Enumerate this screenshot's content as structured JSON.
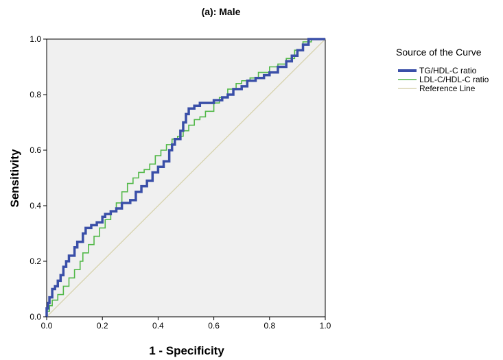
{
  "chart_data": {
    "type": "line",
    "title": "(a): Male",
    "xlabel": "1 - Specificity",
    "ylabel": "Sensitivity",
    "xlim": [
      0,
      1
    ],
    "ylim": [
      0,
      1
    ],
    "x_ticks": [
      "0.0",
      "0.2",
      "0.4",
      "0.6",
      "0.8",
      "1.0"
    ],
    "y_ticks": [
      "0.0",
      "0.2",
      "0.4",
      "0.6",
      "0.8",
      "1.0"
    ],
    "grid": false,
    "legend": {
      "title": "Source of the Curve",
      "position": "right"
    },
    "series": [
      {
        "name": "TG/HDL-C ratio",
        "color": "#3a4fa8",
        "points": [
          [
            0,
            0
          ],
          [
            0.005,
            0.03
          ],
          [
            0.01,
            0.05
          ],
          [
            0.02,
            0.07
          ],
          [
            0.03,
            0.1
          ],
          [
            0.04,
            0.11
          ],
          [
            0.05,
            0.13
          ],
          [
            0.06,
            0.15
          ],
          [
            0.07,
            0.18
          ],
          [
            0.08,
            0.2
          ],
          [
            0.1,
            0.22
          ],
          [
            0.11,
            0.25
          ],
          [
            0.13,
            0.27
          ],
          [
            0.14,
            0.3
          ],
          [
            0.16,
            0.32
          ],
          [
            0.18,
            0.33
          ],
          [
            0.2,
            0.34
          ],
          [
            0.21,
            0.36
          ],
          [
            0.23,
            0.37
          ],
          [
            0.25,
            0.38
          ],
          [
            0.27,
            0.39
          ],
          [
            0.3,
            0.41
          ],
          [
            0.32,
            0.42
          ],
          [
            0.34,
            0.45
          ],
          [
            0.36,
            0.47
          ],
          [
            0.38,
            0.49
          ],
          [
            0.4,
            0.52
          ],
          [
            0.42,
            0.54
          ],
          [
            0.44,
            0.56
          ],
          [
            0.45,
            0.6
          ],
          [
            0.46,
            0.62
          ],
          [
            0.48,
            0.64
          ],
          [
            0.49,
            0.67
          ],
          [
            0.5,
            0.7
          ],
          [
            0.51,
            0.73
          ],
          [
            0.53,
            0.75
          ],
          [
            0.55,
            0.76
          ],
          [
            0.57,
            0.77
          ],
          [
            0.6,
            0.77
          ],
          [
            0.63,
            0.78
          ],
          [
            0.65,
            0.79
          ],
          [
            0.67,
            0.8
          ],
          [
            0.7,
            0.82
          ],
          [
            0.72,
            0.83
          ],
          [
            0.75,
            0.85
          ],
          [
            0.78,
            0.86
          ],
          [
            0.8,
            0.87
          ],
          [
            0.83,
            0.88
          ],
          [
            0.86,
            0.9
          ],
          [
            0.88,
            0.92
          ],
          [
            0.9,
            0.94
          ],
          [
            0.92,
            0.96
          ],
          [
            0.94,
            0.98
          ],
          [
            0.96,
            1.0
          ],
          [
            1,
            1
          ]
        ]
      },
      {
        "name": "LDL-C/HDL-C ratio",
        "color": "#52b848",
        "points": [
          [
            0,
            0
          ],
          [
            0.01,
            0.02
          ],
          [
            0.02,
            0.04
          ],
          [
            0.04,
            0.06
          ],
          [
            0.06,
            0.08
          ],
          [
            0.08,
            0.11
          ],
          [
            0.1,
            0.14
          ],
          [
            0.12,
            0.17
          ],
          [
            0.13,
            0.2
          ],
          [
            0.15,
            0.23
          ],
          [
            0.17,
            0.26
          ],
          [
            0.19,
            0.29
          ],
          [
            0.21,
            0.32
          ],
          [
            0.23,
            0.35
          ],
          [
            0.25,
            0.38
          ],
          [
            0.27,
            0.41
          ],
          [
            0.29,
            0.45
          ],
          [
            0.31,
            0.48
          ],
          [
            0.33,
            0.5
          ],
          [
            0.35,
            0.52
          ],
          [
            0.37,
            0.53
          ],
          [
            0.39,
            0.55
          ],
          [
            0.41,
            0.58
          ],
          [
            0.43,
            0.6
          ],
          [
            0.45,
            0.62
          ],
          [
            0.47,
            0.64
          ],
          [
            0.49,
            0.65
          ],
          [
            0.51,
            0.67
          ],
          [
            0.53,
            0.69
          ],
          [
            0.55,
            0.71
          ],
          [
            0.57,
            0.72
          ],
          [
            0.6,
            0.74
          ],
          [
            0.62,
            0.77
          ],
          [
            0.65,
            0.79
          ],
          [
            0.68,
            0.82
          ],
          [
            0.7,
            0.84
          ],
          [
            0.73,
            0.85
          ],
          [
            0.76,
            0.86
          ],
          [
            0.8,
            0.88
          ],
          [
            0.83,
            0.9
          ],
          [
            0.86,
            0.91
          ],
          [
            0.89,
            0.93
          ],
          [
            0.92,
            0.96
          ],
          [
            0.95,
            0.99
          ],
          [
            0.97,
            1.0
          ],
          [
            1,
            1
          ]
        ]
      },
      {
        "name": "Reference Line",
        "color": "#d8d4b0",
        "points": [
          [
            0,
            0
          ],
          [
            1,
            1
          ]
        ]
      }
    ]
  }
}
